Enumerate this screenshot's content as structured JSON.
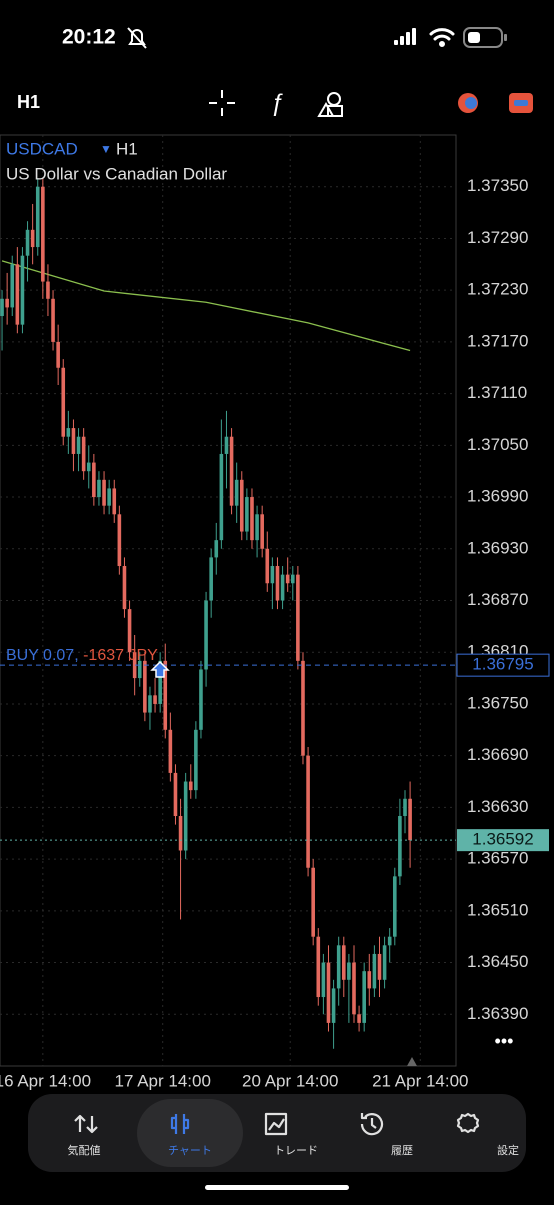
{
  "status_bar": {
    "time": "20:12"
  },
  "toolbar": {
    "timeframe": "H1"
  },
  "chart_data": {
    "type": "candlestick",
    "symbol": "USDCAD",
    "timeframe": "H1",
    "subtitle": "US Dollar vs Canadian Dollar",
    "up_color": "#3fa08e",
    "down_color": "#e46a5f",
    "open": [
      1.372,
      1.3722,
      1.3721,
      1.3726,
      1.3719,
      1.3727,
      1.373,
      1.3728,
      1.3735,
      1.3724,
      1.3722,
      1.3717,
      1.3714,
      1.3706,
      1.3707,
      1.3704,
      1.3706,
      1.3702,
      1.3703,
      1.3699,
      1.3701,
      1.3698,
      1.37,
      1.3697,
      1.3691,
      1.3686,
      1.3681,
      1.3678,
      1.368,
      1.3674,
      1.3676,
      1.3675,
      1.368,
      1.3672,
      1.3667,
      1.3662,
      1.3658,
      1.3666,
      1.3665,
      1.3672,
      1.3679,
      1.3687,
      1.3692,
      1.3694,
      1.3704,
      1.3706,
      1.3698,
      1.3701,
      1.3695,
      1.3699,
      1.3694,
      1.3697,
      1.3693,
      1.3689,
      1.3691,
      1.3687,
      1.369,
      1.3689,
      1.369,
      1.368,
      1.3669,
      1.3656,
      1.3648,
      1.3641,
      1.3645,
      1.3638,
      1.3642,
      1.3647,
      1.3643,
      1.3645,
      1.3639,
      1.3638,
      1.3644,
      1.3642,
      1.3646,
      1.3643,
      1.3647,
      1.3648,
      1.3655,
      1.3662,
      1.3664
    ],
    "high": [
      1.3723,
      1.3725,
      1.3727,
      1.3728,
      1.3728,
      1.3731,
      1.3733,
      1.3736,
      1.3736,
      1.3726,
      1.3723,
      1.3719,
      1.3715,
      1.3709,
      1.3708,
      1.3707,
      1.3707,
      1.3705,
      1.3704,
      1.3702,
      1.3702,
      1.3701,
      1.3701,
      1.3698,
      1.3692,
      1.3687,
      1.3683,
      1.3681,
      1.3681,
      1.3677,
      1.3678,
      1.3681,
      1.3682,
      1.3674,
      1.3668,
      1.3664,
      1.3667,
      1.3668,
      1.3673,
      1.368,
      1.3688,
      1.3693,
      1.3696,
      1.3708,
      1.3709,
      1.3707,
      1.3703,
      1.3702,
      1.37,
      1.37,
      1.3698,
      1.3698,
      1.3695,
      1.3692,
      1.3692,
      1.3691,
      1.3692,
      1.3691,
      1.3691,
      1.3681,
      1.367,
      1.3657,
      1.3649,
      1.3646,
      1.3647,
      1.3643,
      1.3648,
      1.3648,
      1.3646,
      1.3647,
      1.364,
      1.3645,
      1.3646,
      1.3647,
      1.3648,
      1.3648,
      1.3649,
      1.3656,
      1.3664,
      1.3665,
      1.3666
    ],
    "low": [
      1.3716,
      1.3719,
      1.372,
      1.3718,
      1.3718,
      1.3724,
      1.3726,
      1.3727,
      1.3722,
      1.372,
      1.3716,
      1.3712,
      1.3705,
      1.3704,
      1.3702,
      1.3702,
      1.3701,
      1.37,
      1.3698,
      1.3698,
      1.3697,
      1.3697,
      1.3696,
      1.369,
      1.3685,
      1.368,
      1.3676,
      1.3677,
      1.3673,
      1.3672,
      1.3674,
      1.3674,
      1.3671,
      1.3666,
      1.3661,
      1.365,
      1.3657,
      1.3664,
      1.3664,
      1.3671,
      1.3677,
      1.3685,
      1.369,
      1.3693,
      1.37,
      1.3697,
      1.3696,
      1.3694,
      1.3694,
      1.3693,
      1.3692,
      1.3692,
      1.3688,
      1.3686,
      1.3686,
      1.3686,
      1.3688,
      1.3687,
      1.3679,
      1.3668,
      1.3655,
      1.3647,
      1.364,
      1.3639,
      1.3637,
      1.3635,
      1.364,
      1.3641,
      1.3638,
      1.3638,
      1.3637,
      1.3637,
      1.364,
      1.3641,
      1.3641,
      1.3642,
      1.3645,
      1.3647,
      1.3654,
      1.366,
      1.3656
    ],
    "close": [
      1.3722,
      1.3721,
      1.3726,
      1.3719,
      1.3727,
      1.373,
      1.3728,
      1.3735,
      1.3724,
      1.3722,
      1.3717,
      1.3714,
      1.3706,
      1.3707,
      1.3704,
      1.3706,
      1.3702,
      1.3703,
      1.3699,
      1.3701,
      1.3698,
      1.37,
      1.3697,
      1.3691,
      1.3686,
      1.3681,
      1.3678,
      1.368,
      1.3674,
      1.3676,
      1.3675,
      1.368,
      1.3672,
      1.3667,
      1.3662,
      1.3658,
      1.3666,
      1.3665,
      1.3672,
      1.3679,
      1.3687,
      1.3692,
      1.3694,
      1.3704,
      1.3706,
      1.3698,
      1.3701,
      1.3695,
      1.3699,
      1.3694,
      1.3697,
      1.3693,
      1.3689,
      1.3691,
      1.3687,
      1.369,
      1.3689,
      1.369,
      1.368,
      1.3669,
      1.3656,
      1.3648,
      1.3641,
      1.3645,
      1.3638,
      1.3642,
      1.3647,
      1.3643,
      1.3645,
      1.3639,
      1.3638,
      1.3644,
      1.3642,
      1.3646,
      1.3643,
      1.3647,
      1.3648,
      1.3655,
      1.3662,
      1.3664,
      1.36592
    ],
    "ylim": [
      1.3633,
      1.3741
    ],
    "yticks": [
      {
        "value": 1.3735,
        "label": "1.37350"
      },
      {
        "value": 1.3729,
        "label": "1.37290"
      },
      {
        "value": 1.3723,
        "label": "1.37230"
      },
      {
        "value": 1.3717,
        "label": "1.37170"
      },
      {
        "value": 1.3711,
        "label": "1.37110"
      },
      {
        "value": 1.3705,
        "label": "1.37050"
      },
      {
        "value": 1.3699,
        "label": "1.36990"
      },
      {
        "value": 1.3693,
        "label": "1.36930"
      },
      {
        "value": 1.3687,
        "label": "1.36870"
      },
      {
        "value": 1.3681,
        "label": "1.36810"
      },
      {
        "value": 1.3675,
        "label": "1.36750"
      },
      {
        "value": 1.3669,
        "label": "1.36690"
      },
      {
        "value": 1.3663,
        "label": "1.36630"
      },
      {
        "value": 1.3657,
        "label": "1.36570"
      },
      {
        "value": 1.3651,
        "label": "1.36510"
      },
      {
        "value": 1.3645,
        "label": "1.36450"
      },
      {
        "value": 1.3639,
        "label": "1.36390"
      }
    ],
    "xlim": [
      -0.4,
      89
    ],
    "xticks": [
      {
        "value": 8,
        "label": "16 Apr 14:00"
      },
      {
        "value": 31.5,
        "label": "17 Apr 14:00"
      },
      {
        "value": 56.5,
        "label": "20 Apr 14:00"
      },
      {
        "value": 82,
        "label": "21 Apr 14:00"
      }
    ],
    "grid": true,
    "moving_average": {
      "color": "#8bbf4e",
      "x": [
        0,
        20,
        40,
        60,
        80
      ],
      "values": [
        1.37264,
        1.37229,
        1.37216,
        1.37192,
        1.3716
      ]
    },
    "order_line": {
      "label": "BUY 0.07,",
      "profit": "-1637 JPY",
      "price": 1.36795,
      "color": "#3a6fd8",
      "profit_color": "#e0553e"
    },
    "current_price": {
      "value": 1.36592,
      "color": "#5fb3a8"
    }
  },
  "tab_bar": {
    "tabs": [
      "気配値",
      "チャート",
      "トレード",
      "履歴",
      "設定"
    ],
    "selected": 1
  }
}
